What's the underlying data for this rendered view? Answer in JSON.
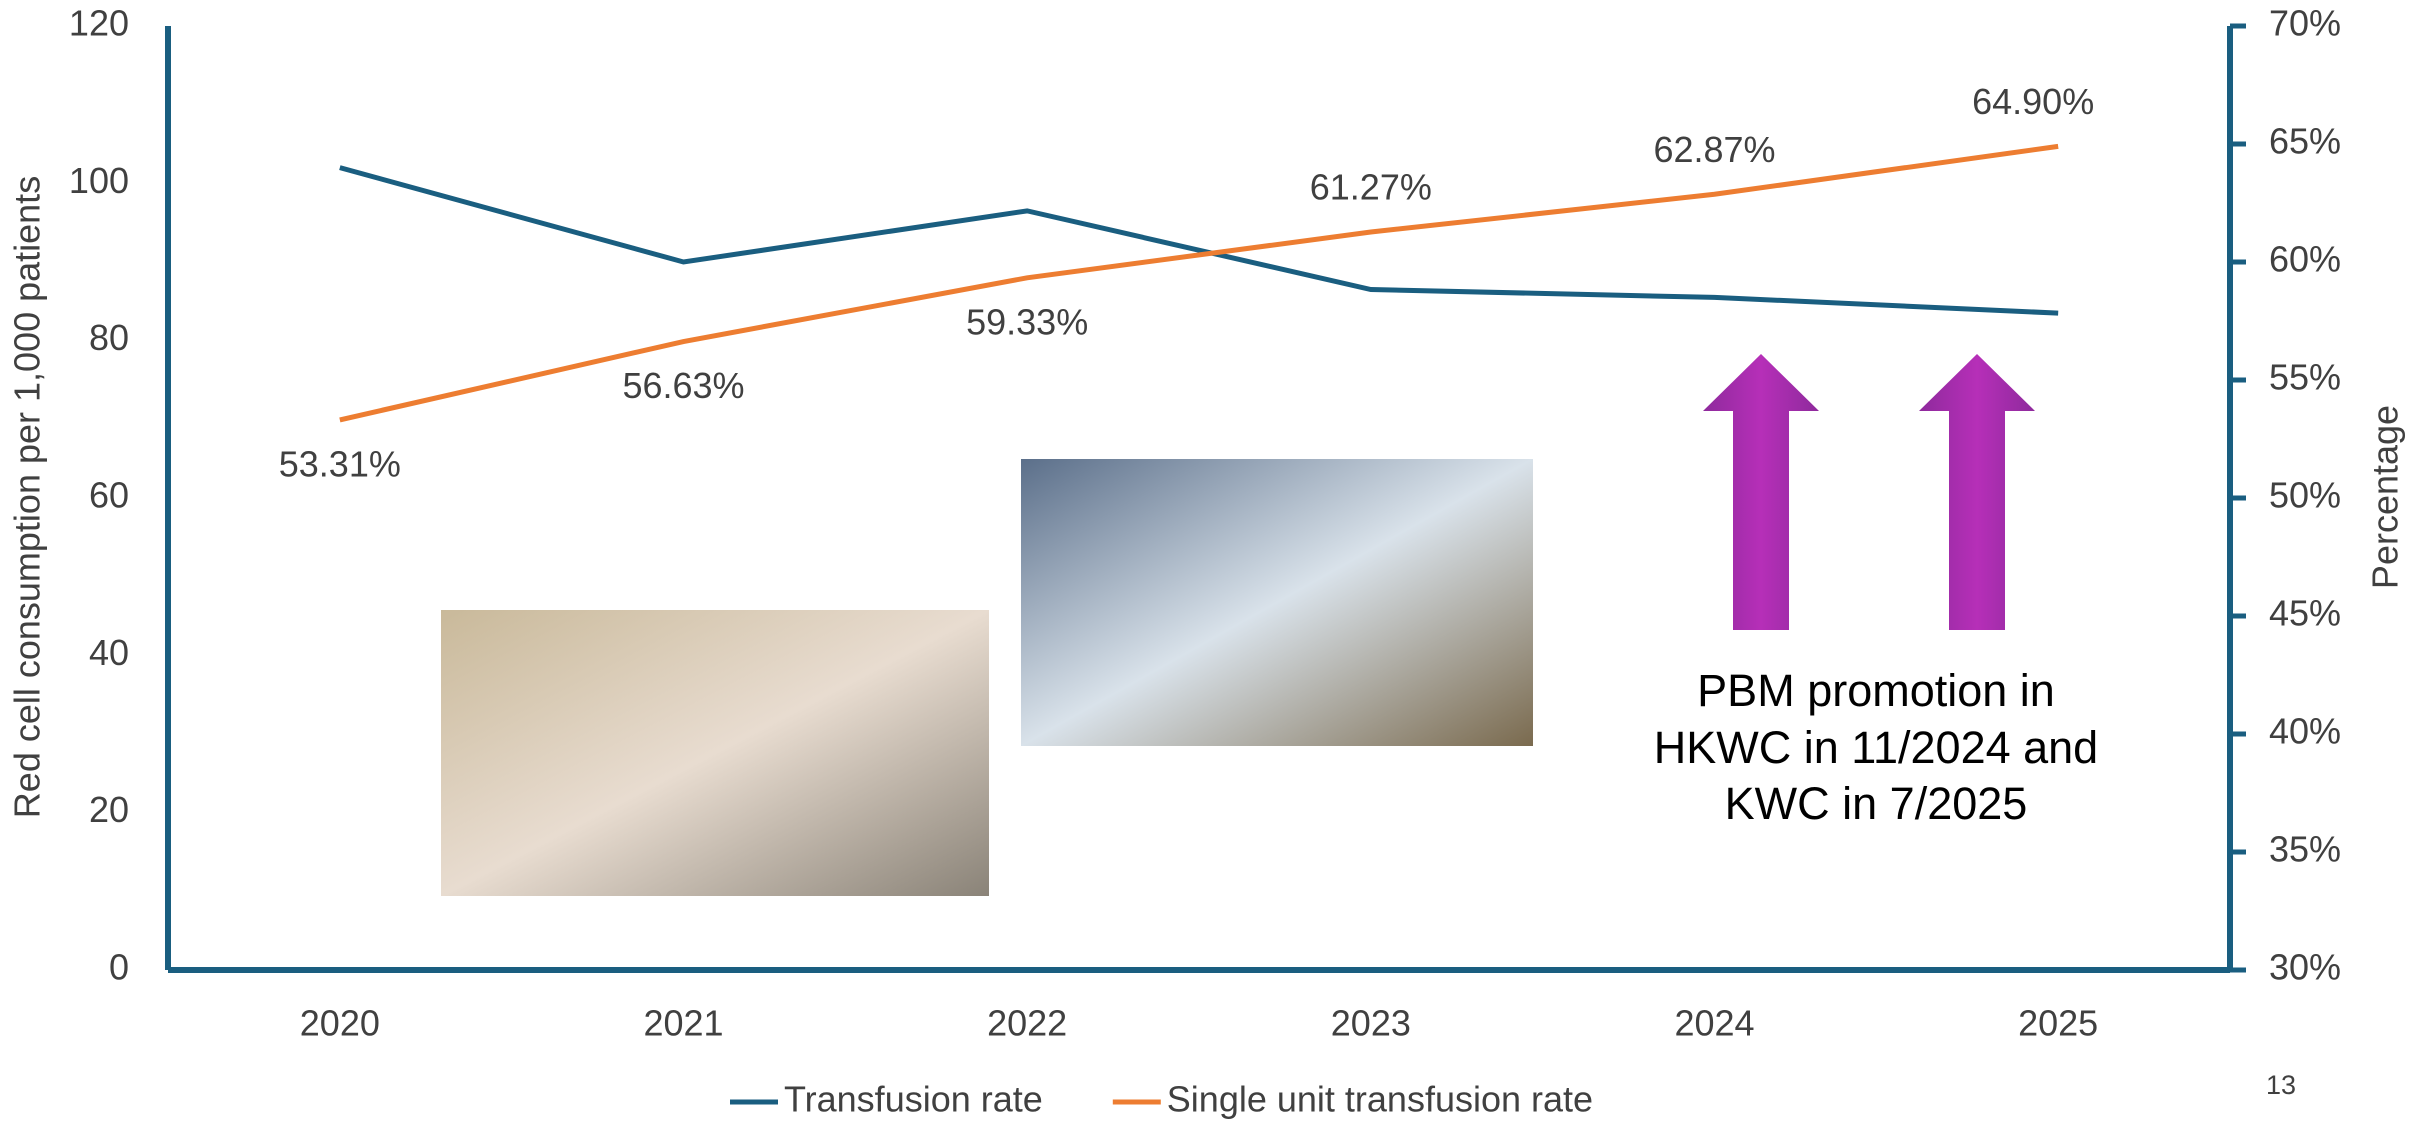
{
  "chart_data": {
    "type": "line",
    "y_label": "Red cell consumption per 1,000 patients",
    "y2_label": "Percentage",
    "categories": [
      "2020",
      "2021",
      "2022",
      "2023",
      "2024",
      "2025"
    ],
    "series": [
      {
        "name": "Transfusion rate",
        "color": "#1a5e80",
        "values": [
          102,
          90,
          96.5,
          86.5,
          85.5,
          83.5
        ]
      },
      {
        "name": "Single unit transfusion rate",
        "color": "#ed7d31",
        "axis": "y2",
        "values": [
          53.31,
          56.63,
          59.33,
          61.27,
          62.87,
          64.9
        ],
        "value_labels": [
          "53.31%",
          "56.63%",
          "59.33%",
          "61.27%",
          "62.87%",
          "64.90%"
        ]
      }
    ],
    "ylim": [
      0,
      120
    ],
    "yticks": [
      0,
      20,
      40,
      60,
      80,
      100,
      120
    ],
    "y2lim": [
      30,
      70
    ],
    "y2ticks": [
      {
        "value": 30,
        "label": "30%"
      },
      {
        "value": 35,
        "label": "35%"
      },
      {
        "value": 40,
        "label": "40%"
      },
      {
        "value": 45,
        "label": "45%"
      },
      {
        "value": 50,
        "label": "50%"
      },
      {
        "value": 55,
        "label": "55%"
      },
      {
        "value": 60,
        "label": "60%"
      },
      {
        "value": 65,
        "label": "65%"
      },
      {
        "value": 70,
        "label": "70%"
      }
    ],
    "grid": false,
    "legend": "bottom",
    "annotation": [
      "PBM promotion in",
      "HKWC in 11/2024 and",
      "KWC in 7/2025"
    ]
  },
  "page_number": "13"
}
